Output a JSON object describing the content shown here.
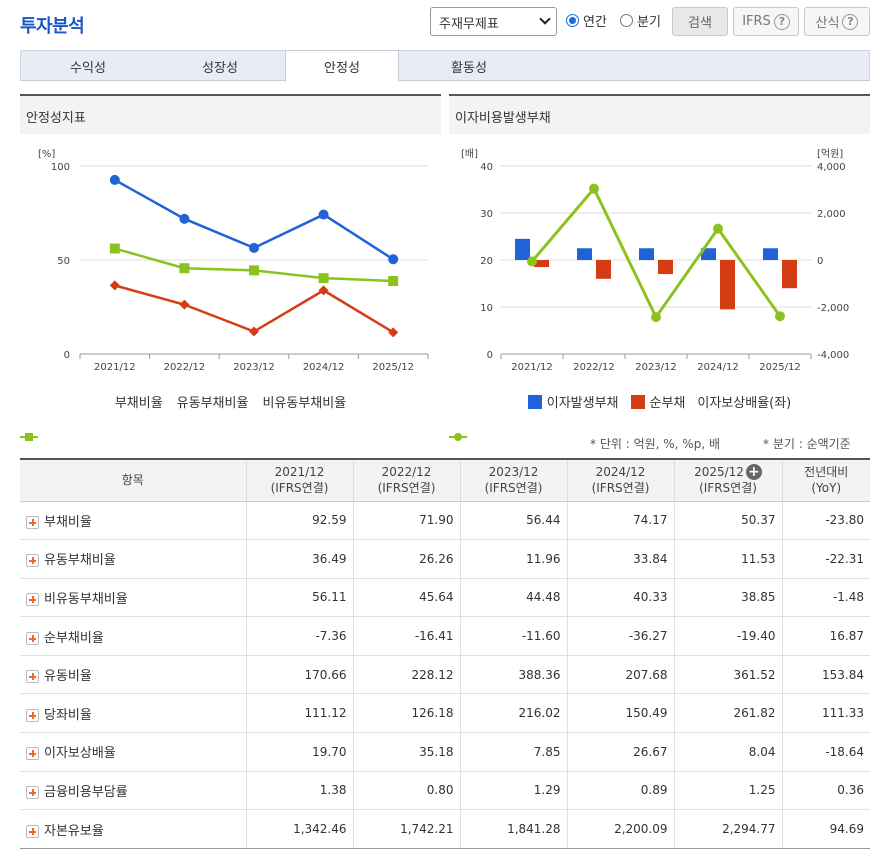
{
  "header": {
    "title": "투자분석",
    "select_value": "주재무제표",
    "radio_annual": "연간",
    "radio_quarter": "분기",
    "search_label": "검색",
    "ifrs_label": "IFRS",
    "formula_label": "산식"
  },
  "tabs": [
    "수익성",
    "성장성",
    "안정성",
    "활동성"
  ],
  "active_tab": "안정성",
  "colors": {
    "blue": "#2162d8",
    "red": "#d43c14",
    "green": "#8cc21e",
    "accent": "#1a56c4"
  },
  "charts": {
    "left_title": "안정성지표",
    "right_title": "이자비용발생부채"
  },
  "chart_data": [
    {
      "type": "line",
      "title": "안정성지표",
      "ylabel": "[%]",
      "ylim": [
        0,
        100
      ],
      "yticks": [
        0,
        50,
        100
      ],
      "categories": [
        "2021/12",
        "2022/12",
        "2023/12",
        "2024/12",
        "2025/12"
      ],
      "series": [
        {
          "name": "부채비율",
          "values": [
            92.59,
            71.9,
            56.44,
            74.17,
            50.37
          ]
        },
        {
          "name": "유동부채비율",
          "values": [
            36.49,
            26.26,
            11.96,
            33.84,
            11.53
          ]
        },
        {
          "name": "비유동부채비율",
          "values": [
            56.11,
            45.64,
            44.48,
            40.33,
            38.85
          ]
        }
      ],
      "legend": "bottom"
    },
    {
      "type": "bar",
      "title": "이자비용발생부채",
      "ylabel_left": "[배]",
      "ylabel_right": "[억원]",
      "ylim_left": [
        0,
        40
      ],
      "yticks_left": [
        0,
        10,
        20,
        30,
        40
      ],
      "ylim_right": [
        -4000,
        4000
      ],
      "yticks_right": [
        "-4,000",
        "-2,000",
        "0",
        "2,000",
        "4,000"
      ],
      "categories": [
        "2021/12",
        "2022/12",
        "2023/12",
        "2024/12",
        "2025/12"
      ],
      "series": [
        {
          "name": "이자발생부채",
          "axis": "right",
          "values": [
            900,
            500,
            500,
            500,
            500
          ]
        },
        {
          "name": "순부채",
          "axis": "right",
          "values": [
            -300,
            -800,
            -600,
            -2100,
            -1200
          ]
        },
        {
          "name": "이자보상배율(좌)",
          "axis": "left",
          "type": "line",
          "values": [
            19.7,
            35.18,
            7.85,
            26.67,
            8.04
          ]
        }
      ],
      "legend": "bottom"
    }
  ],
  "notes": {
    "unit": "* 단위 : 억원, %, %p, 배",
    "quarter": "* 분기 : 순액기준"
  },
  "table": {
    "headers": [
      {
        "l1": "항목",
        "l2": ""
      },
      {
        "l1": "2021/12",
        "l2": "(IFRS연결)"
      },
      {
        "l1": "2022/12",
        "l2": "(IFRS연결)"
      },
      {
        "l1": "2023/12",
        "l2": "(IFRS연결)"
      },
      {
        "l1": "2024/12",
        "l2": "(IFRS연결)"
      },
      {
        "l1": "2025/12",
        "l2": "(IFRS연결)"
      },
      {
        "l1": "전년대비",
        "l2": "(YoY)"
      }
    ],
    "rows": [
      {
        "label": "부채비율",
        "values": [
          "92.59",
          "71.90",
          "56.44",
          "74.17",
          "50.37",
          "-23.80"
        ]
      },
      {
        "label": "유동부채비율",
        "values": [
          "36.49",
          "26.26",
          "11.96",
          "33.84",
          "11.53",
          "-22.31"
        ]
      },
      {
        "label": "비유동부채비율",
        "values": [
          "56.11",
          "45.64",
          "44.48",
          "40.33",
          "38.85",
          "-1.48"
        ]
      },
      {
        "label": "순부채비율",
        "values": [
          "-7.36",
          "-16.41",
          "-11.60",
          "-36.27",
          "-19.40",
          "16.87"
        ]
      },
      {
        "label": "유동비율",
        "values": [
          "170.66",
          "228.12",
          "388.36",
          "207.68",
          "361.52",
          "153.84"
        ]
      },
      {
        "label": "당좌비율",
        "values": [
          "111.12",
          "126.18",
          "216.02",
          "150.49",
          "261.82",
          "111.33"
        ]
      },
      {
        "label": "이자보상배율",
        "values": [
          "19.70",
          "35.18",
          "7.85",
          "26.67",
          "8.04",
          "-18.64"
        ]
      },
      {
        "label": "금융비용부담률",
        "values": [
          "1.38",
          "0.80",
          "1.29",
          "0.89",
          "1.25",
          "0.36"
        ]
      },
      {
        "label": "자본유보율",
        "values": [
          "1,342.46",
          "1,742.21",
          "1,841.28",
          "2,200.09",
          "2,294.77",
          "94.69"
        ]
      }
    ]
  }
}
